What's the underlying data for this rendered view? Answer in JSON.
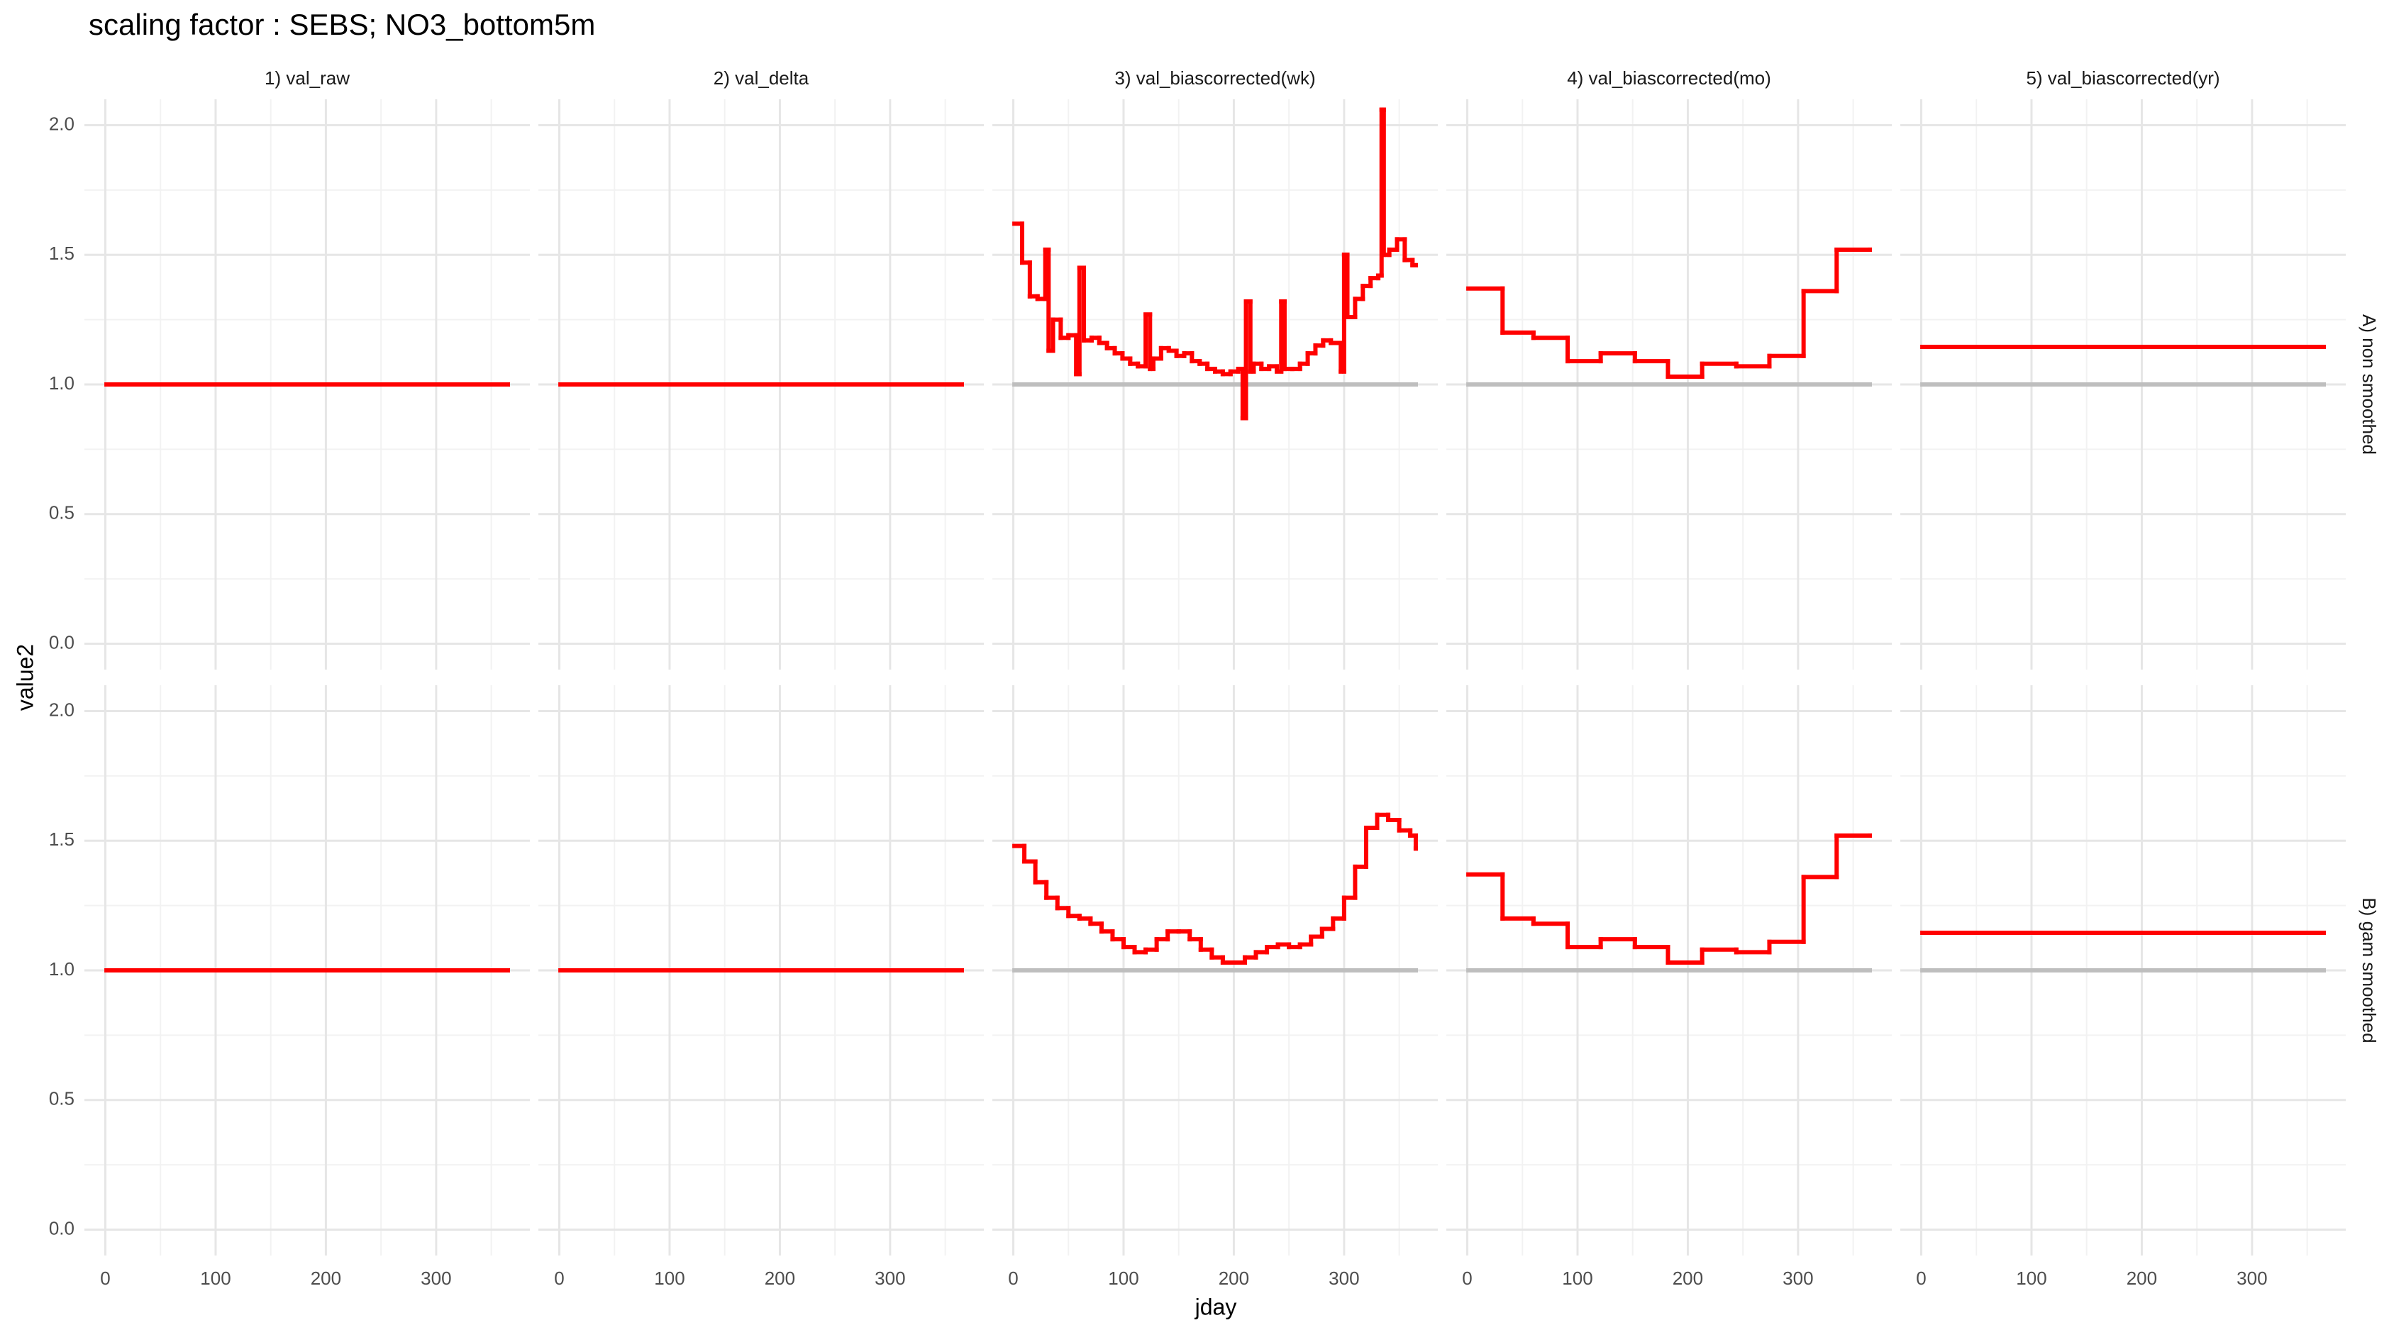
{
  "chart_data": {
    "type": "line",
    "title": "scaling factor : SEBS; NO3_bottom5m",
    "xlabel": "jday",
    "ylabel": "value2",
    "xlim": [
      -19,
      385
    ],
    "ylim": [
      -0.1,
      2.1
    ],
    "xticks": [
      0,
      100,
      200,
      300
    ],
    "yticks": [
      {
        "value": 0,
        "label": "0.0"
      },
      {
        "value": 0.5,
        "label": "0.5"
      },
      {
        "value": 1,
        "label": "1.0"
      },
      {
        "value": 1.5,
        "label": "1.5"
      },
      {
        "value": 2,
        "label": "2.0"
      }
    ],
    "x_minor_ticks": [
      50,
      150,
      250,
      350
    ],
    "y_minor_ticks": [
      0.25,
      0.75,
      1.25,
      1.75
    ],
    "grid": true,
    "step": true,
    "columns": [
      "1) val_raw",
      "2) val_delta",
      "3) val_biascorrected(wk)",
      "4) val_biascorrected(mo)",
      "5) val_biascorrected(yr)"
    ],
    "rows": [
      {
        "label": "A) non smoothed",
        "panels": [
          {
            "series": [
              {
                "color": "#ff0000",
                "x": [
                  1,
                  365
                ],
                "values": [
                  1,
                  1
                ]
              }
            ]
          },
          {
            "series": [
              {
                "color": "#ff0000",
                "x": [
                  1,
                  365
                ],
                "values": [
                  1,
                  1
                ]
              }
            ]
          },
          {
            "series": [
              {
                "color": "#bebebe",
                "x": [
                  1,
                  365
                ],
                "values": [
                  1,
                  1
                ]
              },
              {
                "color": "#ff0000",
                "x": [
                  1,
                  8,
                  15,
                  22,
                  29,
                  32,
                  36,
                  43,
                  50,
                  57,
                  60,
                  64,
                  71,
                  78,
                  85,
                  92,
                  99,
                  106,
                  113,
                  120,
                  124,
                  127,
                  134,
                  141,
                  148,
                  155,
                  162,
                  169,
                  176,
                  183,
                  190,
                  197,
                  204,
                  208,
                  211,
                  215,
                  218,
                  225,
                  232,
                  239,
                  243,
                  246,
                  253,
                  260,
                  267,
                  274,
                  281,
                  288,
                  297,
                  300,
                  303,
                  310,
                  317,
                  324,
                  331,
                  334,
                  336,
                  341,
                  348,
                  355,
                  362,
                  365
                ],
                "values": [
                  1.62,
                  1.47,
                  1.34,
                  1.33,
                  1.52,
                  1.13,
                  1.25,
                  1.18,
                  1.19,
                  1.04,
                  1.45,
                  1.17,
                  1.18,
                  1.16,
                  1.14,
                  1.12,
                  1.1,
                  1.08,
                  1.07,
                  1.27,
                  1.06,
                  1.1,
                  1.14,
                  1.13,
                  1.11,
                  1.12,
                  1.09,
                  1.08,
                  1.06,
                  1.05,
                  1.04,
                  1.05,
                  1.06,
                  0.87,
                  1.32,
                  1.05,
                  1.08,
                  1.06,
                  1.07,
                  1.05,
                  1.32,
                  1.06,
                  1.06,
                  1.08,
                  1.12,
                  1.15,
                  1.17,
                  1.16,
                  1.05,
                  1.5,
                  1.26,
                  1.33,
                  1.38,
                  1.41,
                  1.42,
                  2.06,
                  1.5,
                  1.52,
                  1.56,
                  1.48,
                  1.46,
                  1.46
                ]
              }
            ]
          },
          {
            "series": [
              {
                "color": "#bebebe",
                "x": [
                  1,
                  365
                ],
                "values": [
                  1,
                  1
                ]
              },
              {
                "color": "#ff0000",
                "x": [
                  1,
                  32,
                  60,
                  91,
                  121,
                  152,
                  182,
                  213,
                  244,
                  274,
                  305,
                  335,
                  365
                ],
                "values": [
                  1.37,
                  1.2,
                  1.18,
                  1.09,
                  1.12,
                  1.09,
                  1.03,
                  1.08,
                  1.07,
                  1.11,
                  1.36,
                  1.52,
                  1.52
                ]
              }
            ]
          },
          {
            "series": [
              {
                "color": "#bebebe",
                "x": [
                  1,
                  365
                ],
                "values": [
                  1,
                  1
                ]
              },
              {
                "color": "#ff0000",
                "x": [
                  1,
                  365
                ],
                "values": [
                  1.145,
                  1.145
                ]
              }
            ]
          }
        ]
      },
      {
        "label": "B) gam smoothed",
        "panels": [
          {
            "series": [
              {
                "color": "#ff0000",
                "x": [
                  1,
                  365
                ],
                "values": [
                  1,
                  1
                ]
              }
            ]
          },
          {
            "series": [
              {
                "color": "#ff0000",
                "x": [
                  1,
                  365
                ],
                "values": [
                  1,
                  1
                ]
              }
            ]
          },
          {
            "series": [
              {
                "color": "#bebebe",
                "x": [
                  1,
                  365
                ],
                "values": [
                  1,
                  1
                ]
              },
              {
                "color": "#ff0000",
                "x": [
                  1,
                  10,
                  20,
                  30,
                  40,
                  50,
                  60,
                  70,
                  80,
                  90,
                  100,
                  110,
                  120,
                  130,
                  140,
                  150,
                  160,
                  170,
                  180,
                  190,
                  200,
                  210,
                  220,
                  230,
                  240,
                  250,
                  260,
                  270,
                  280,
                  290,
                  300,
                  310,
                  320,
                  330,
                  340,
                  350,
                  360,
                  365
                ],
                "values": [
                  1.48,
                  1.42,
                  1.34,
                  1.28,
                  1.24,
                  1.21,
                  1.2,
                  1.18,
                  1.15,
                  1.12,
                  1.09,
                  1.07,
                  1.08,
                  1.12,
                  1.15,
                  1.15,
                  1.12,
                  1.08,
                  1.05,
                  1.03,
                  1.03,
                  1.05,
                  1.07,
                  1.09,
                  1.1,
                  1.09,
                  1.1,
                  1.13,
                  1.16,
                  1.2,
                  1.28,
                  1.4,
                  1.55,
                  1.6,
                  1.58,
                  1.54,
                  1.52,
                  1.47
                ]
              }
            ]
          },
          {
            "series": [
              {
                "color": "#bebebe",
                "x": [
                  1,
                  365
                ],
                "values": [
                  1,
                  1
                ]
              },
              {
                "color": "#ff0000",
                "x": [
                  1,
                  32,
                  60,
                  91,
                  121,
                  152,
                  182,
                  213,
                  244,
                  274,
                  305,
                  335,
                  365
                ],
                "values": [
                  1.37,
                  1.2,
                  1.18,
                  1.09,
                  1.12,
                  1.09,
                  1.03,
                  1.08,
                  1.07,
                  1.11,
                  1.36,
                  1.52,
                  1.52
                ]
              }
            ]
          },
          {
            "series": [
              {
                "color": "#bebebe",
                "x": [
                  1,
                  365
                ],
                "values": [
                  1,
                  1
                ]
              },
              {
                "color": "#ff0000",
                "x": [
                  1,
                  365
                ],
                "values": [
                  1.145,
                  1.145
                ]
              }
            ]
          }
        ]
      }
    ]
  }
}
